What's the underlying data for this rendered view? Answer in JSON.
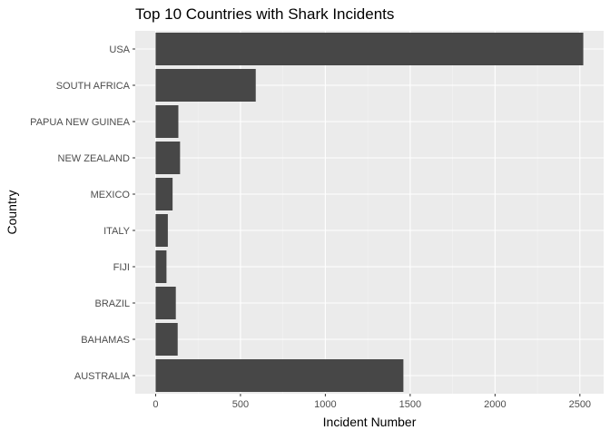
{
  "chart_data": {
    "type": "bar",
    "orientation": "horizontal",
    "title": "Top 10 Countries with Shark Incidents",
    "xlabel": "Incident Number",
    "ylabel": "Country",
    "categories": [
      "USA",
      "SOUTH AFRICA",
      "PAPUA NEW GUINEA",
      "NEW ZEALAND",
      "MEXICO",
      "ITALY",
      "FIJI",
      "BRAZIL",
      "BAHAMAS",
      "AUSTRALIA"
    ],
    "values": [
      2520,
      590,
      134,
      144,
      100,
      72,
      64,
      119,
      130,
      1460
    ],
    "xlim": [
      -120,
      2640
    ],
    "xticks": [
      0,
      500,
      1000,
      1500,
      2000,
      2500
    ],
    "xtick_labels": [
      "0",
      "500",
      "1000",
      "1500",
      "2000",
      "2500"
    ],
    "grid": true,
    "colors": {
      "bar": "#474747",
      "panel": "#ebebeb",
      "grid_major": "#ffffff",
      "grid_minor": "#f4f4f4"
    }
  }
}
